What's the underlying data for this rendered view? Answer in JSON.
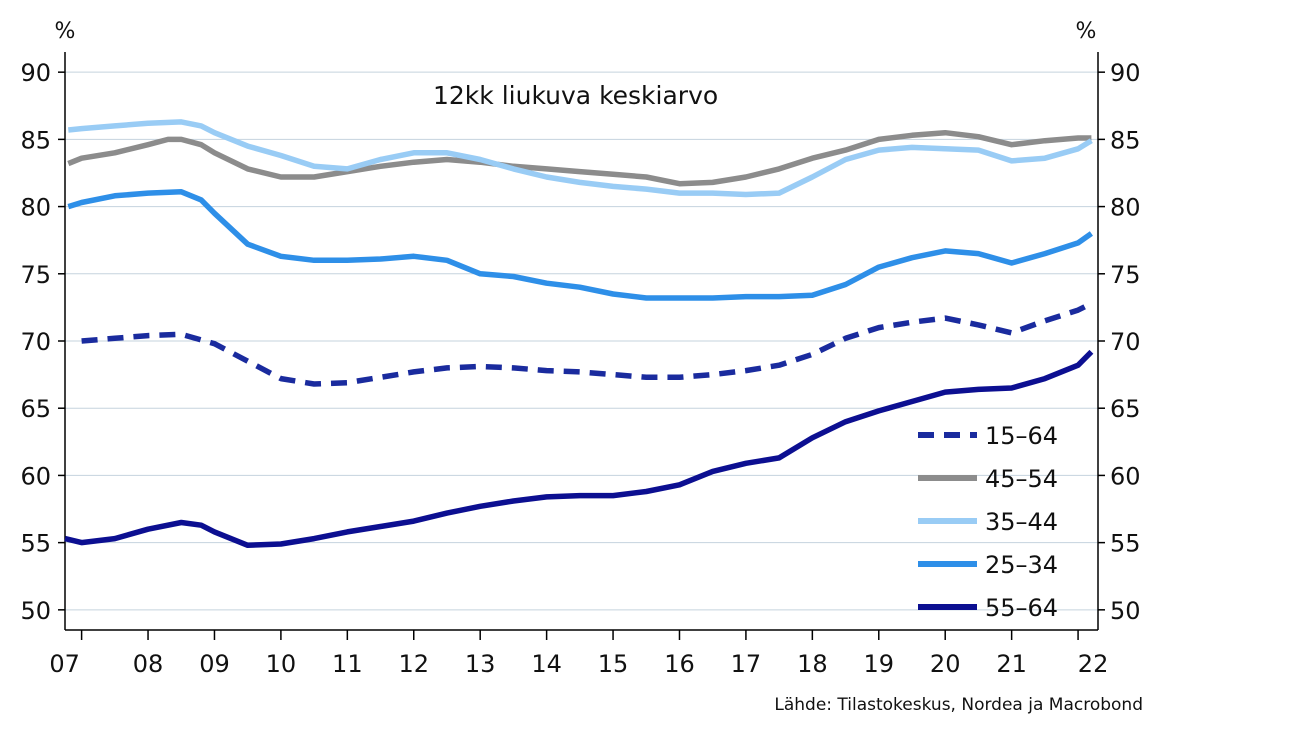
{
  "chart_data": {
    "type": "line",
    "title": "12kk liukuva keskiarvo",
    "source": "Lähde: Tilastokeskus, Nordea ja Macrobond",
    "y_unit_left": "%",
    "y_unit_right": "%",
    "ylim": [
      48.5,
      91.5
    ],
    "yticks": [
      50,
      55,
      60,
      65,
      70,
      75,
      80,
      85,
      90
    ],
    "xlim": [
      2006.75,
      2022.3
    ],
    "xtick_labels": [
      "07",
      "08",
      "09",
      "10",
      "11",
      "12",
      "13",
      "14",
      "15",
      "16",
      "17",
      "18",
      "19",
      "20",
      "21",
      "22"
    ],
    "xtick_positions": [
      2007,
      2008,
      2009,
      2010,
      2011,
      2012,
      2013,
      2014,
      2015,
      2016,
      2017,
      2018,
      2019,
      2020,
      2021,
      2022
    ],
    "grid": true,
    "legend_position": "bottom-right",
    "series": [
      {
        "name": "15–64",
        "color": "#1a2b9e",
        "dashed": true,
        "x": [
          2007.0,
          2007.5,
          2008.0,
          2008.5,
          2009.0,
          2009.5,
          2010.0,
          2010.5,
          2011.0,
          2011.5,
          2012.0,
          2012.5,
          2013.0,
          2013.5,
          2014.0,
          2014.5,
          2015.0,
          2015.5,
          2016.0,
          2016.5,
          2017.0,
          2017.5,
          2018.0,
          2018.5,
          2019.0,
          2019.5,
          2020.0,
          2020.5,
          2021.0,
          2021.5,
          2022.0,
          2022.2
        ],
        "values": [
          70.0,
          70.2,
          70.4,
          70.5,
          69.8,
          68.5,
          67.2,
          66.8,
          66.9,
          67.3,
          67.7,
          68.0,
          68.1,
          68.0,
          67.8,
          67.7,
          67.5,
          67.3,
          67.3,
          67.5,
          67.8,
          68.2,
          69.0,
          70.2,
          71.0,
          71.4,
          71.7,
          71.2,
          70.6,
          71.5,
          72.3,
          72.8
        ]
      },
      {
        "name": "45–54",
        "color": "#8c8c8c",
        "dashed": false,
        "x": [
          2006.8,
          2007.0,
          2007.5,
          2008.0,
          2008.3,
          2008.5,
          2008.8,
          2009.0,
          2009.5,
          2010.0,
          2010.5,
          2011.0,
          2011.5,
          2012.0,
          2012.5,
          2013.0,
          2013.5,
          2014.0,
          2014.5,
          2015.0,
          2015.5,
          2016.0,
          2016.5,
          2017.0,
          2017.5,
          2018.0,
          2018.5,
          2019.0,
          2019.5,
          2020.0,
          2020.5,
          2021.0,
          2021.5,
          2022.0,
          2022.2
        ],
        "values": [
          83.2,
          83.6,
          84.0,
          84.6,
          85.0,
          85.0,
          84.6,
          84.0,
          82.8,
          82.2,
          82.2,
          82.6,
          83.0,
          83.3,
          83.5,
          83.3,
          83.0,
          82.8,
          82.6,
          82.4,
          82.2,
          81.7,
          81.8,
          82.2,
          82.8,
          83.6,
          84.2,
          85.0,
          85.3,
          85.5,
          85.2,
          84.6,
          84.9,
          85.1,
          85.1
        ]
      },
      {
        "name": "35–44",
        "color": "#99ccf5",
        "dashed": false,
        "x": [
          2006.8,
          2007.0,
          2007.5,
          2008.0,
          2008.5,
          2008.8,
          2009.0,
          2009.5,
          2010.0,
          2010.5,
          2011.0,
          2011.5,
          2012.0,
          2012.5,
          2013.0,
          2013.5,
          2014.0,
          2014.5,
          2015.0,
          2015.5,
          2016.0,
          2016.5,
          2017.0,
          2017.5,
          2018.0,
          2018.5,
          2019.0,
          2019.5,
          2020.0,
          2020.5,
          2021.0,
          2021.5,
          2022.0,
          2022.2
        ],
        "values": [
          85.7,
          85.8,
          86.0,
          86.2,
          86.3,
          86.0,
          85.5,
          84.5,
          83.8,
          83.0,
          82.8,
          83.5,
          84.0,
          84.0,
          83.5,
          82.8,
          82.2,
          81.8,
          81.5,
          81.3,
          81.0,
          81.0,
          80.9,
          81.0,
          82.2,
          83.5,
          84.2,
          84.4,
          84.3,
          84.2,
          83.4,
          83.6,
          84.3,
          84.9
        ]
      },
      {
        "name": "25–34",
        "color": "#2e8fe8",
        "dashed": false,
        "x": [
          2006.8,
          2007.0,
          2007.5,
          2008.0,
          2008.5,
          2008.8,
          2009.0,
          2009.5,
          2010.0,
          2010.5,
          2011.0,
          2011.5,
          2012.0,
          2012.5,
          2013.0,
          2013.5,
          2014.0,
          2014.5,
          2015.0,
          2015.5,
          2016.0,
          2016.5,
          2017.0,
          2017.5,
          2018.0,
          2018.5,
          2019.0,
          2019.5,
          2020.0,
          2020.5,
          2021.0,
          2021.5,
          2022.0,
          2022.2
        ],
        "values": [
          80.0,
          80.3,
          80.8,
          81.0,
          81.1,
          80.5,
          79.5,
          77.2,
          76.3,
          76.0,
          76.0,
          76.1,
          76.3,
          76.0,
          75.0,
          74.8,
          74.3,
          74.0,
          73.5,
          73.2,
          73.2,
          73.2,
          73.3,
          73.3,
          73.4,
          74.2,
          75.5,
          76.2,
          76.7,
          76.5,
          75.8,
          76.5,
          77.3,
          78.0
        ]
      },
      {
        "name": "55–64",
        "color": "#0c0f91",
        "dashed": false,
        "x": [
          2006.75,
          2007.0,
          2007.5,
          2008.0,
          2008.5,
          2008.8,
          2009.0,
          2009.5,
          2010.0,
          2010.5,
          2011.0,
          2011.5,
          2012.0,
          2012.5,
          2013.0,
          2013.5,
          2014.0,
          2014.5,
          2015.0,
          2015.5,
          2016.0,
          2016.5,
          2017.0,
          2017.5,
          2018.0,
          2018.5,
          2019.0,
          2019.5,
          2020.0,
          2020.5,
          2021.0,
          2021.5,
          2022.0,
          2022.2
        ],
        "values": [
          55.3,
          55.0,
          55.3,
          56.0,
          56.5,
          56.3,
          55.8,
          54.8,
          54.9,
          55.3,
          55.8,
          56.2,
          56.6,
          57.2,
          57.7,
          58.1,
          58.4,
          58.5,
          58.5,
          58.8,
          59.3,
          60.3,
          60.9,
          61.3,
          62.8,
          64.0,
          64.8,
          65.5,
          66.2,
          66.4,
          66.5,
          67.2,
          68.2,
          69.2
        ]
      }
    ]
  }
}
